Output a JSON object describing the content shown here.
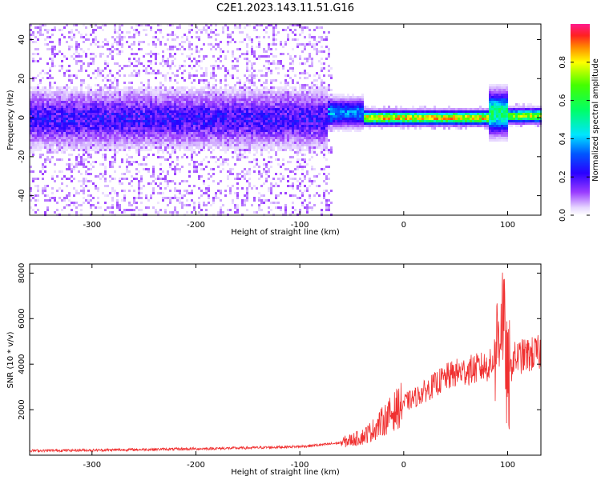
{
  "page_title": "C2E1.2023.143.11.51.G16",
  "colors": {
    "snr_line": "#f03030",
    "frame": "#000000",
    "background": "#ffffff"
  },
  "chart_data": [
    {
      "type": "heatmap",
      "title": "C2E1.2023.143.11.51.G16",
      "xlabel": "Height of straight line (km)",
      "ylabel": "Frequency (Hz)",
      "xlim": [
        -360,
        132
      ],
      "ylim": [
        -50,
        48
      ],
      "x_ticks": [
        -300,
        -200,
        -100,
        0,
        100
      ],
      "y_ticks": [
        -40,
        -20,
        0,
        20,
        40
      ],
      "colorbar": {
        "label": "Normalized spectral amplitude",
        "range": [
          0,
          1
        ],
        "ticks": [
          0.0,
          0.2,
          0.4,
          0.6,
          0.8
        ],
        "colormap": "rainbow (white/lavender low → purple → blue → cyan → green → yellow → red → magenta high)"
      },
      "features": [
        {
          "x_range": [
            -360,
            -75
          ],
          "freq_center": 0,
          "freq_spread": 8,
          "peak_amplitude": 0.2
        },
        {
          "x_range": [
            -75,
            -40
          ],
          "freq_center": 3,
          "freq_spread": 4,
          "peak_amplitude": 0.4
        },
        {
          "x_range": [
            -40,
            80
          ],
          "freq_center": 0.5,
          "freq_spread": 2,
          "peak_amplitude": 0.9
        },
        {
          "x_range": [
            80,
            100
          ],
          "freq_center": 3,
          "freq_spread": 6,
          "peak_amplitude": 0.6
        },
        {
          "x_range": [
            100,
            132
          ],
          "freq_center": 1.5,
          "freq_spread": 2,
          "peak_amplitude": 0.8
        }
      ]
    },
    {
      "type": "line",
      "xlabel": "Height of straight line (km)",
      "ylabel": "SNR (10 * v/v)",
      "xlim": [
        -360,
        132
      ],
      "ylim": [
        0,
        8400
      ],
      "x_ticks": [
        -300,
        -200,
        -100,
        0,
        100
      ],
      "y_ticks": [
        2000,
        4000,
        6000,
        8000
      ],
      "series": [
        {
          "color": "#f03030",
          "x": [
            -360,
            -300,
            -250,
            -200,
            -150,
            -100,
            -80,
            -60,
            -40,
            -30,
            -20,
            -10,
            0,
            10,
            20,
            30,
            40,
            50,
            60,
            70,
            80,
            85,
            90,
            95,
            100,
            105,
            110,
            120,
            132
          ],
          "y": [
            200,
            220,
            250,
            280,
            320,
            380,
            450,
            550,
            800,
            1100,
            1500,
            1900,
            2300,
            2500,
            2800,
            3100,
            3400,
            3600,
            3700,
            3800,
            3900,
            4000,
            5000,
            6500,
            3000,
            4200,
            4300,
            4400,
            4500
          ]
        }
      ]
    }
  ]
}
